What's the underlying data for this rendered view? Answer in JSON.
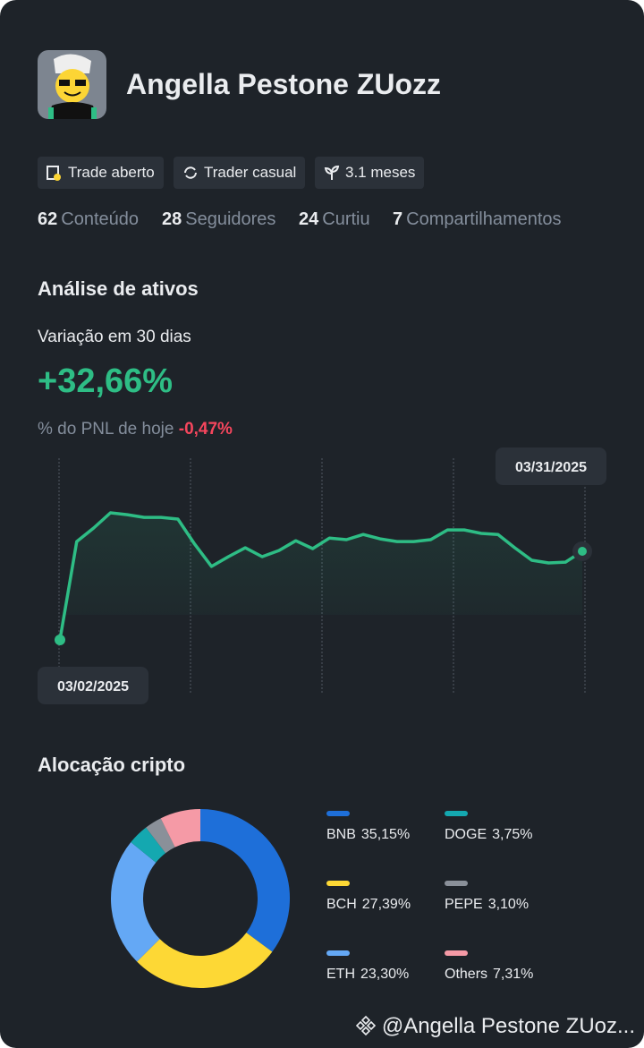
{
  "header": {
    "name": "Angella Pestone ZUozz",
    "tags": [
      "Trade aberto",
      "Trader casual",
      "3.1 meses"
    ]
  },
  "stats": [
    {
      "value": "62",
      "label": "Conteúdo"
    },
    {
      "value": "28",
      "label": "Seguidores"
    },
    {
      "value": "24",
      "label": "Curtiu"
    },
    {
      "value": "7",
      "label": "Compartilhamentos"
    }
  ],
  "asset_analysis": {
    "title": "Análise de ativos",
    "variation_label": "Variação em 30 dias",
    "variation": "+32,66%",
    "pnl_label": "% do PNL de hoje",
    "pnl_today": "-0,47%",
    "chart": {
      "type": "line",
      "start_date": "03/02/2025",
      "end_date": "03/31/2025",
      "color": "#2ebd85",
      "values": [
        0,
        36.3,
        41.3,
        46.9,
        46.2,
        45.2,
        45.2,
        44.6,
        35.3,
        27.1,
        30.7,
        34.0,
        30.7,
        33.0,
        36.6,
        33.7,
        37.6,
        37.0,
        38.9,
        37.3,
        36.3,
        36.3,
        37.0,
        40.6,
        40.6,
        39.3,
        38.9,
        34.0,
        29.4,
        28.4,
        28.7,
        32.7
      ]
    }
  },
  "allocation": {
    "title": "Alocação cripto",
    "type": "pie",
    "items": [
      {
        "name": "BNB",
        "value": 35.15,
        "label": "35,15%",
        "color": "#1e6fd9"
      },
      {
        "name": "BCH",
        "value": 27.39,
        "label": "27,39%",
        "color": "#fdd835"
      },
      {
        "name": "ETH",
        "value": 23.3,
        "label": "23,30%",
        "color": "#64a8f5"
      },
      {
        "name": "DOGE",
        "value": 3.75,
        "label": "3,75%",
        "color": "#14a8b0"
      },
      {
        "name": "PEPE",
        "value": 3.1,
        "label": "3,10%",
        "color": "#8a9099"
      },
      {
        "name": "Others",
        "value": 7.31,
        "label": "7,31%",
        "color": "#f59aa6"
      }
    ]
  },
  "footer": "@Angella Pestone ZUoz..."
}
